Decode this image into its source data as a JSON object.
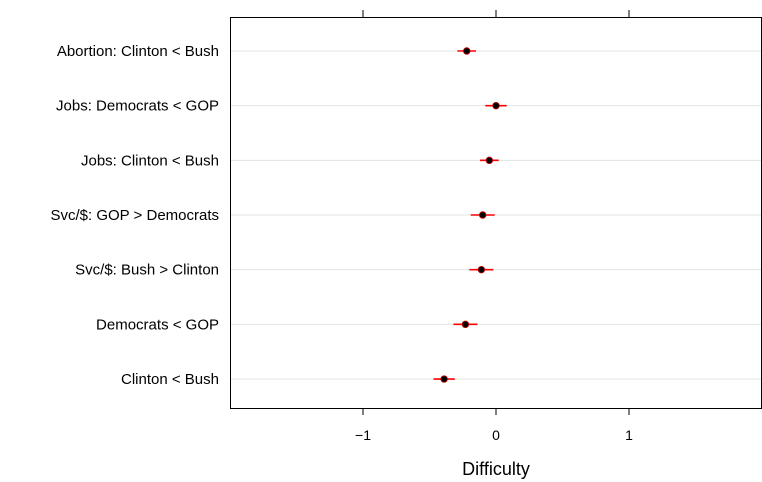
{
  "chart_data": {
    "type": "scatter",
    "subtype": "dot-plot-with-intervals",
    "title": "",
    "xlabel": "Difficulty",
    "ylabel": "",
    "xlim": [
      -2,
      2
    ],
    "xticks": [
      -1,
      0,
      1
    ],
    "xtick_labels": [
      "−1",
      "0",
      "1"
    ],
    "categories": [
      "Abortion: Clinton < Bush",
      "Jobs: Democrats < GOP",
      "Jobs: Clinton < Bush",
      "Svc/$: GOP > Democrats",
      "Svc/$: Bush > Clinton",
      "Democrats < GOP",
      "Clinton < Bush"
    ],
    "estimates": [
      -0.22,
      0.0,
      -0.05,
      -0.1,
      -0.11,
      -0.23,
      -0.39
    ],
    "lower": [
      -0.29,
      -0.08,
      -0.12,
      -0.19,
      -0.2,
      -0.32,
      -0.47
    ],
    "upper": [
      -0.15,
      0.08,
      0.02,
      -0.01,
      -0.02,
      -0.14,
      -0.31
    ],
    "grid": "horizontal",
    "colors": {
      "point_fill": "#000000",
      "point_edge": "#cc0000",
      "interval": "#ff0000",
      "grid": "#e3e3e3",
      "axis": "#000000"
    }
  }
}
